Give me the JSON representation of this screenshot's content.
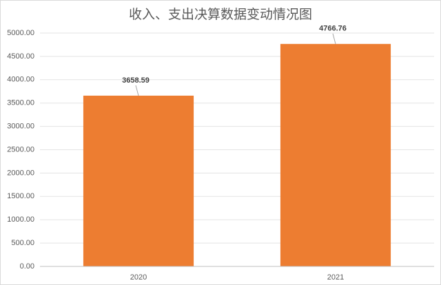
{
  "chart_data": {
    "type": "bar",
    "title": "收入、支出决算数据变动情况图",
    "categories": [
      "2020",
      "2021"
    ],
    "values": [
      3658.59,
      4766.76
    ],
    "color": "#ed7d31",
    "ylim": [
      0,
      5000
    ],
    "yticks": [
      {
        "value": 0,
        "label": "0.00"
      },
      {
        "value": 500,
        "label": "500.00"
      },
      {
        "value": 1000,
        "label": "1000.00"
      },
      {
        "value": 1500,
        "label": "1500.00"
      },
      {
        "value": 2000,
        "label": "2000.00"
      },
      {
        "value": 2500,
        "label": "2500.00"
      },
      {
        "value": 3000,
        "label": "3000.00"
      },
      {
        "value": 3500,
        "label": "3500.00"
      },
      {
        "value": 4000,
        "label": "4000.00"
      },
      {
        "value": 4500,
        "label": "4500.00"
      },
      {
        "value": 5000,
        "label": "5000.00"
      }
    ],
    "grid": true
  }
}
